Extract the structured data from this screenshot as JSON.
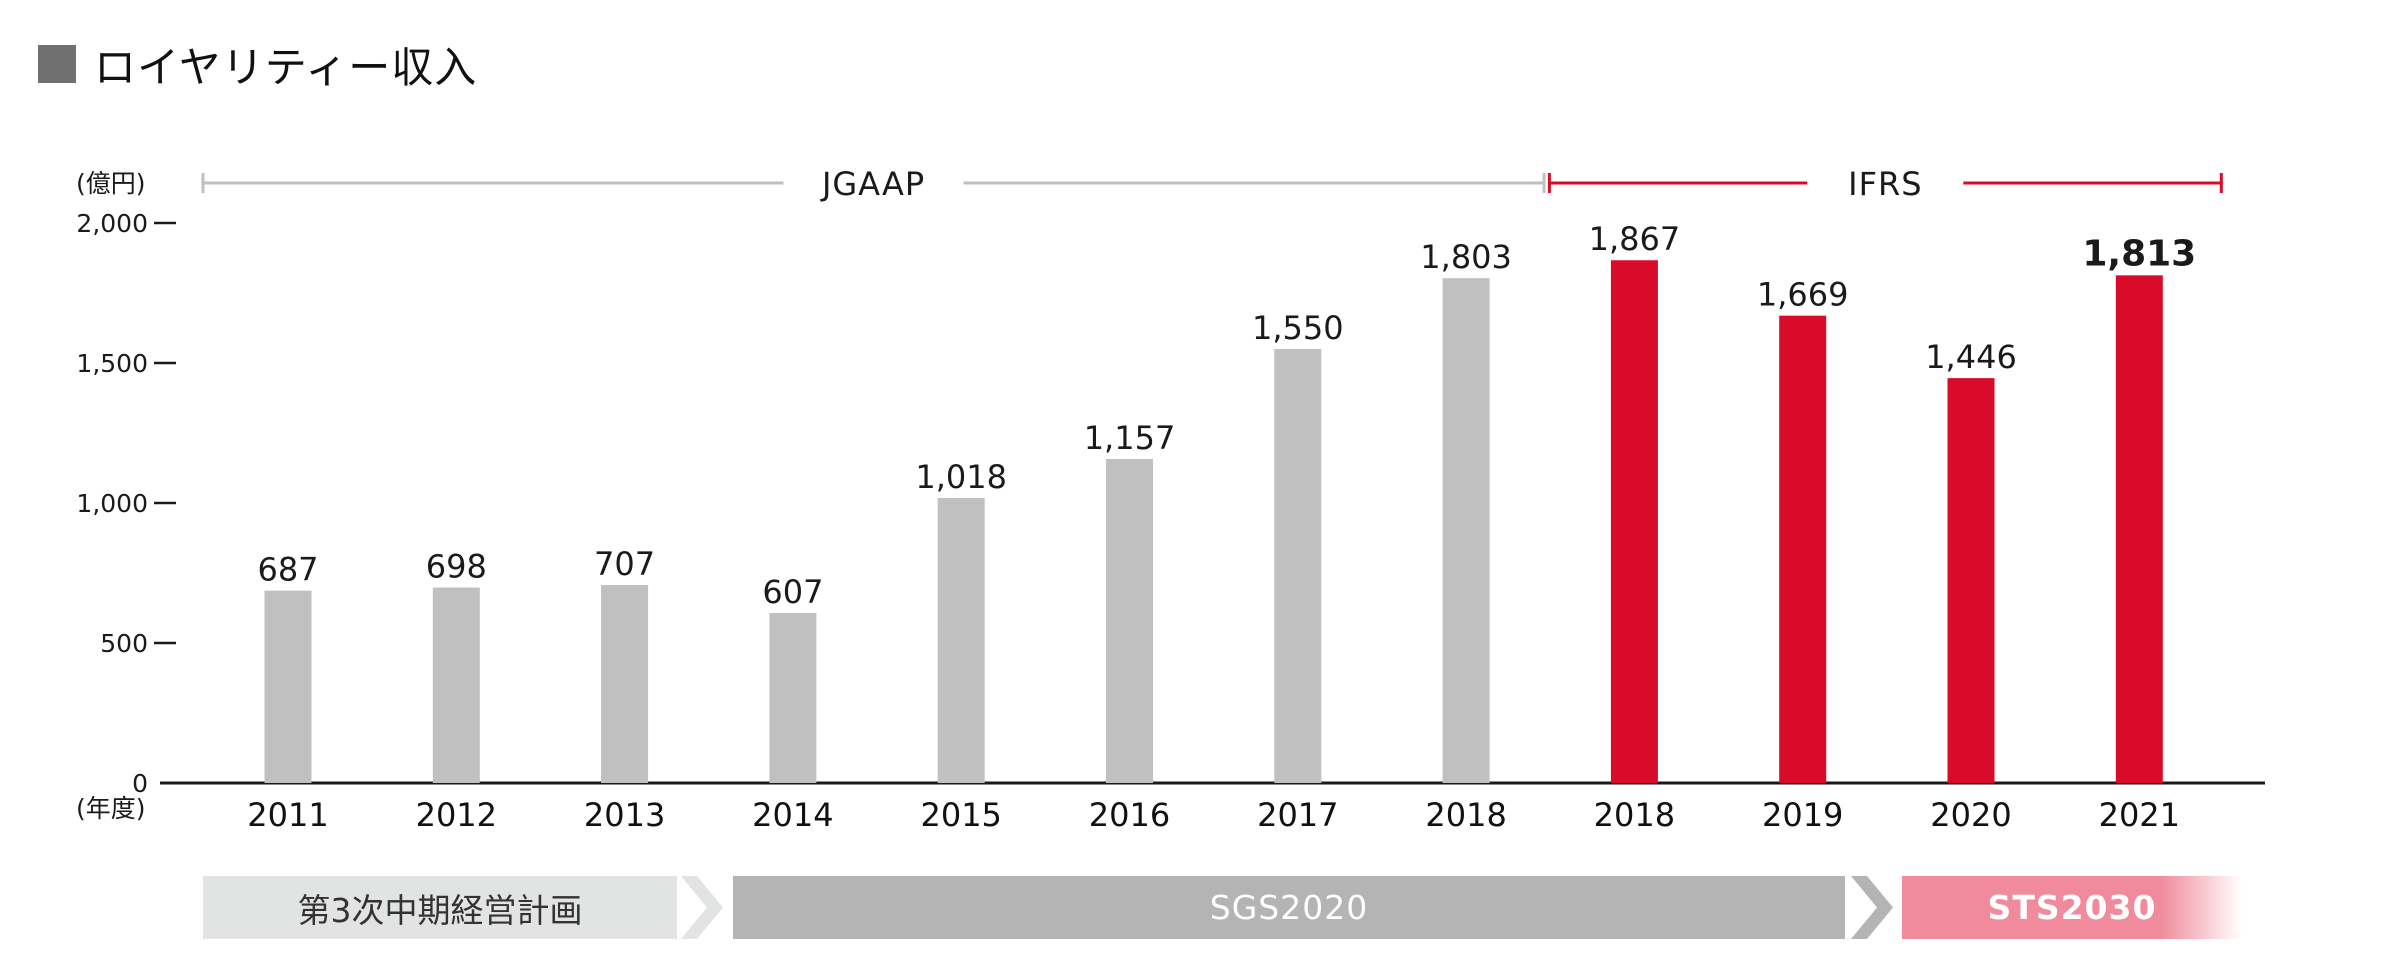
{
  "title": "ロイヤリティー収入",
  "chart_data": {
    "type": "bar",
    "title": "ロイヤリティー収入",
    "ylabel": "(億円)",
    "xlabel": "(年度)",
    "ylim": [
      0,
      2000
    ],
    "yticks": [
      "0",
      "500",
      "1,000",
      "1,500",
      "2,000"
    ],
    "grid": false,
    "categories": [
      "2011",
      "2012",
      "2013",
      "2014",
      "2015",
      "2016",
      "2017",
      "2018",
      "2018",
      "2019",
      "2020",
      "2021"
    ],
    "values": [
      687,
      698,
      707,
      607,
      1018,
      1157,
      1550,
      1803,
      1867,
      1669,
      1446,
      1813
    ],
    "value_labels": [
      "687",
      "698",
      "707",
      "607",
      "1,018",
      "1,157",
      "1,550",
      "1,803",
      "1,867",
      "1,669",
      "1,446",
      "1,813"
    ],
    "standards": [
      "JGAAP",
      "JGAAP",
      "JGAAP",
      "JGAAP",
      "JGAAP",
      "JGAAP",
      "JGAAP",
      "JGAAP",
      "IFRS",
      "IFRS",
      "IFRS",
      "IFRS"
    ],
    "periods": [
      {
        "label": "JGAAP",
        "from_index": 0,
        "to_index": 7,
        "color": "#c0c0c0"
      },
      {
        "label": "IFRS",
        "from_index": 8,
        "to_index": 11,
        "color": "#d90b2b"
      }
    ],
    "series_colors": {
      "JGAAP": "#c0c0c0",
      "IFRS": "#d90b2b"
    },
    "highlight_index": 11
  },
  "plans": [
    {
      "label": "第3次中期経営計画"
    },
    {
      "label": "SGS2020"
    },
    {
      "label": "STS2030"
    }
  ]
}
